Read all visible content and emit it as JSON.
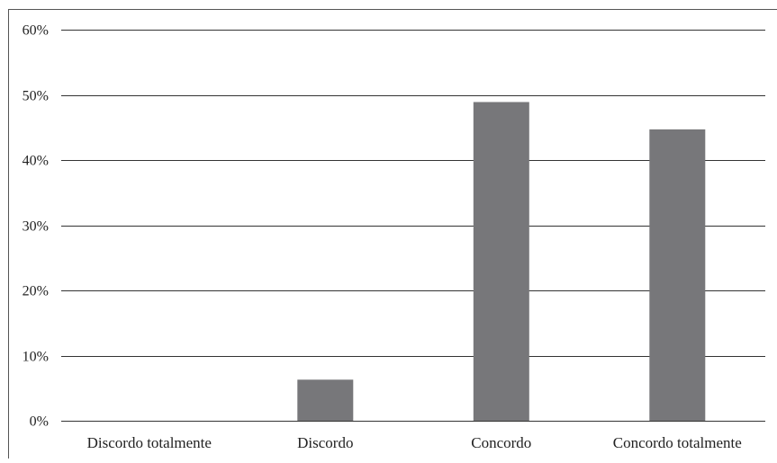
{
  "chart_data": {
    "type": "bar",
    "categories": [
      "Discordo totalmente",
      "Discordo",
      "Concordo",
      "Concordo totalmente"
    ],
    "values": [
      0,
      6.3,
      48.9,
      44.7
    ],
    "ylim": [
      0,
      60
    ],
    "yticks": [
      0,
      10,
      20,
      30,
      40,
      50,
      60
    ],
    "ytick_labels": [
      "0%",
      "10%",
      "20%",
      "30%",
      "40%",
      "50%",
      "60%"
    ],
    "grid": true,
    "title": "",
    "xlabel": "",
    "ylabel": "",
    "colors": {
      "bar": "#77777a",
      "gridline": "#333333",
      "frame": "#555555"
    }
  }
}
